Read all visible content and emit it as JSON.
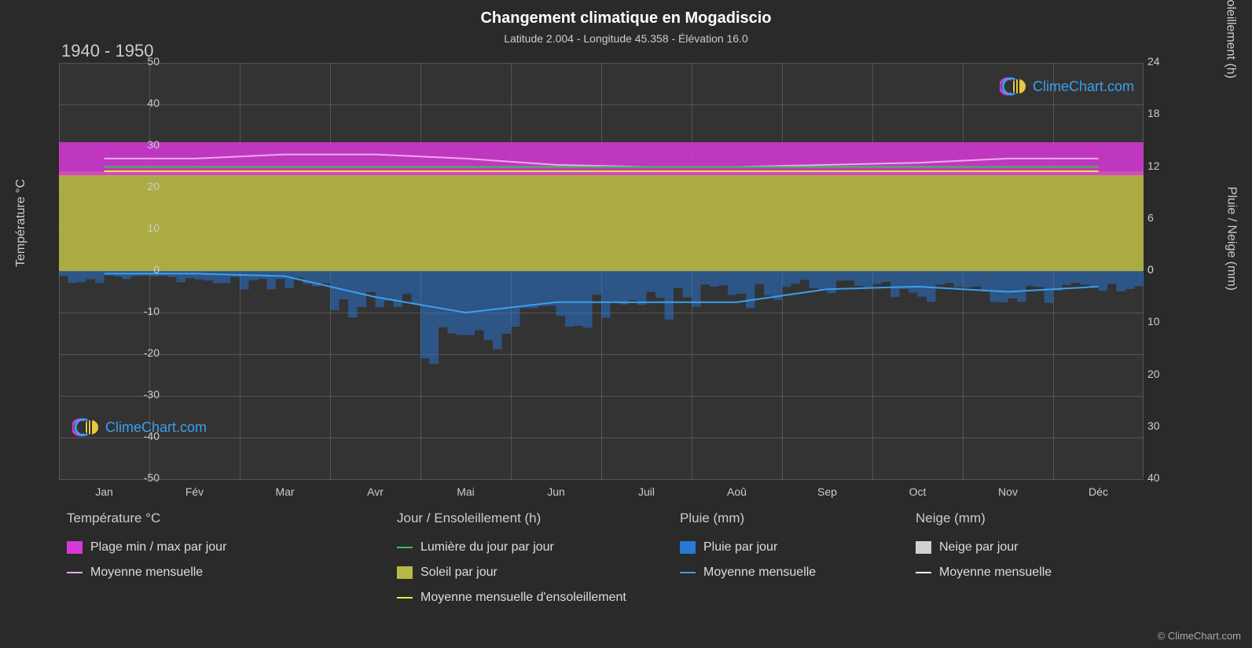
{
  "title": "Changement climatique en Mogadiscio",
  "subtitle": "Latitude 2.004 - Longitude 45.358 - Élévation 16.0",
  "year_range": "1940 - 1950",
  "credit": "© ClimeChart.com",
  "logo_text": "ClimeChart.com",
  "chart": {
    "background_color": "#333333",
    "page_background": "#2a2a2a",
    "grid_color": "#555555",
    "text_color": "#cccccc",
    "months": [
      "Jan",
      "Fév",
      "Mar",
      "Avr",
      "Mai",
      "Jun",
      "Juil",
      "Aoû",
      "Sep",
      "Oct",
      "Nov",
      "Déc"
    ],
    "y_left": {
      "label": "Température °C",
      "min": -50,
      "max": 50,
      "ticks": [
        -50,
        -40,
        -30,
        -20,
        -10,
        0,
        10,
        20,
        30,
        40,
        50
      ]
    },
    "y_right_top": {
      "label": "Jour / Ensoleillement (h)",
      "min": 0,
      "max": 24,
      "ticks": [
        0,
        6,
        12,
        18,
        24
      ]
    },
    "y_right_bot": {
      "label": "Pluie / Neige (mm)",
      "min": 0,
      "max": 40,
      "ticks": [
        0,
        10,
        20,
        30,
        40
      ]
    },
    "series": {
      "temp_range": {
        "color": "#d838d8",
        "low": [
          24,
          24,
          25,
          25,
          24,
          23,
          23,
          23,
          23,
          24,
          24,
          24
        ],
        "high": [
          30,
          30,
          31,
          31,
          30,
          28,
          28,
          28,
          28,
          29,
          30,
          30
        ]
      },
      "temp_mean": {
        "color": "#f0a8f0",
        "vals": [
          27,
          27,
          28,
          28,
          27,
          25.5,
          25,
          25,
          25.5,
          26,
          27,
          27
        ]
      },
      "daylight": {
        "color": "#3cc050",
        "vals": [
          12,
          12,
          12,
          12,
          12,
          12,
          12,
          12,
          12,
          12,
          12,
          12
        ]
      },
      "sunshine": {
        "color": "#b8b846",
        "vals": [
          11,
          11,
          11,
          11.5,
          11.5,
          11.5,
          11.5,
          11.5,
          11.5,
          11,
          11,
          11
        ]
      },
      "sun_mean": {
        "color": "#e8e840",
        "vals": [
          11.5,
          11.5,
          11.5,
          11.5,
          11.5,
          11.5,
          11.5,
          11.5,
          11.5,
          11.5,
          11.5,
          11.5
        ]
      },
      "rain_daily": {
        "color": "#2878d8",
        "spikes_max": [
          2,
          2,
          3,
          8,
          15,
          10,
          8,
          6,
          4,
          5,
          6,
          4
        ]
      },
      "rain_mean": {
        "color": "#3aa0f0",
        "vals": [
          0.5,
          0.5,
          1,
          5,
          8,
          6,
          6,
          6,
          3.5,
          3,
          4,
          3
        ]
      },
      "snow_daily": {
        "color": "#d0d0d0"
      },
      "snow_mean": {
        "color": "#ffffff"
      }
    }
  },
  "legend": {
    "groups": [
      {
        "header": "Température °C",
        "items": [
          {
            "label": "Plage min / max par jour",
            "color": "#d838d8",
            "type": "swatch"
          },
          {
            "label": "Moyenne mensuelle",
            "color": "#f0a8f0",
            "type": "line"
          }
        ]
      },
      {
        "header": "Jour / Ensoleillement (h)",
        "items": [
          {
            "label": "Lumière du jour par jour",
            "color": "#3cc050",
            "type": "line"
          },
          {
            "label": "Soleil par jour",
            "color": "#b8b846",
            "type": "swatch"
          },
          {
            "label": "Moyenne mensuelle d'ensoleillement",
            "color": "#e8e840",
            "type": "line"
          }
        ]
      },
      {
        "header": "Pluie (mm)",
        "items": [
          {
            "label": "Pluie par jour",
            "color": "#2878d8",
            "type": "swatch"
          },
          {
            "label": "Moyenne mensuelle",
            "color": "#3aa0f0",
            "type": "line"
          }
        ]
      },
      {
        "header": "Neige (mm)",
        "items": [
          {
            "label": "Neige par jour",
            "color": "#d0d0d0",
            "type": "swatch"
          },
          {
            "label": "Moyenne mensuelle",
            "color": "#ffffff",
            "type": "line"
          }
        ]
      }
    ]
  }
}
